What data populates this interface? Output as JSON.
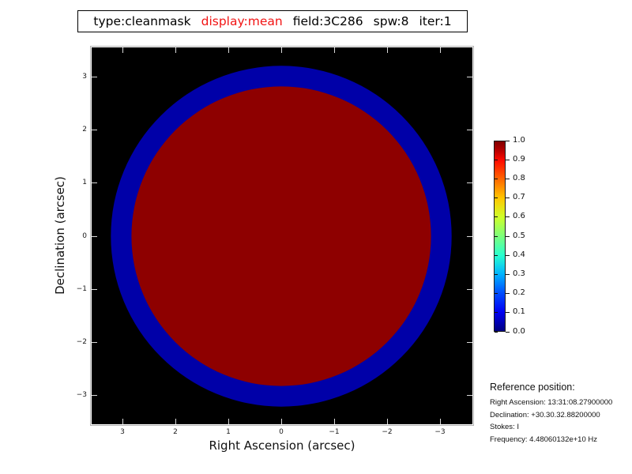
{
  "title": {
    "segments": [
      {
        "text": "type:cleanmask",
        "color": "#000000"
      },
      {
        "text": "display:mean",
        "color": "#f21414"
      },
      {
        "text": "field:3C286",
        "color": "#000000"
      },
      {
        "text": "spw:8",
        "color": "#000000"
      },
      {
        "text": "iter:1",
        "color": "#000000"
      }
    ]
  },
  "chart_data": {
    "type": "heatmap",
    "description": "Mean of clean mask over channels: black background value 0, dark blue annulus of partial coverage, dark red disk of value 1",
    "xlabel": "Right Ascension (arcsec)",
    "ylabel": "Declination (arcsec)",
    "x_ticks": [
      3,
      2,
      1,
      0,
      -1,
      -2,
      -3
    ],
    "y_ticks": [
      3,
      2,
      1,
      0,
      -1,
      -2,
      -3
    ],
    "x_range": [
      3.6,
      -3.6
    ],
    "y_range": [
      -3.55,
      3.55
    ],
    "background_color": "#000000",
    "regions": [
      {
        "name": "outer-mask-ring",
        "shape": "circle",
        "center_arcsec": [
          0,
          0
        ],
        "radius_arcsec": 3.22,
        "color": "#0000a8",
        "approx_value": 0.05
      },
      {
        "name": "inner-mask-disk",
        "shape": "circle",
        "center_arcsec": [
          0,
          0
        ],
        "radius_arcsec": 2.83,
        "color": "#8e0000",
        "approx_value": 1.0
      }
    ],
    "colorbar": {
      "colormap": "jet",
      "min": 0.0,
      "max": 1.0,
      "tick_labels": [
        "1.0",
        "0.9",
        "0.8",
        "0.7",
        "0.6",
        "0.5",
        "0.4",
        "0.3",
        "0.2",
        "0.1",
        "0.0"
      ],
      "position": "right"
    },
    "grid": false,
    "tick_style": "inward-white-on-all-four-sides"
  },
  "reference": {
    "heading": "Reference position:",
    "lines": [
      "Right Ascension: 13:31:08.27900000",
      "Declination: +30.30.32.88200000",
      "Stokes: I",
      "Frequency: 4.48060132e+10 Hz"
    ]
  }
}
